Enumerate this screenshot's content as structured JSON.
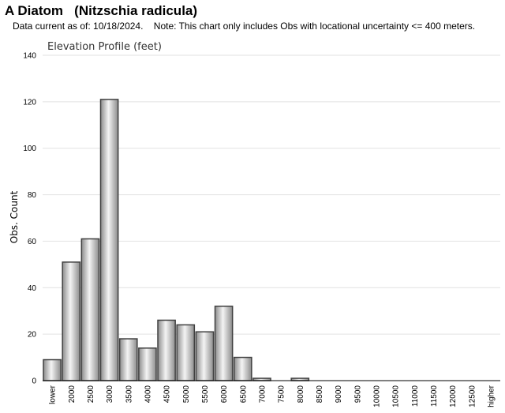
{
  "header": {
    "title": "A Diatom   (Nitzschia radicula)",
    "note": "Data current as of: 10/18/2024.    Note: This chart only includes Obs with locational uncertainty <= 400 meters."
  },
  "chart_data": {
    "type": "bar",
    "title": "Elevation Profile (feet)",
    "xlabel": "",
    "ylabel": "Obs. Count",
    "ylim": [
      0,
      140
    ],
    "yticks": [
      0,
      20,
      40,
      60,
      80,
      100,
      120,
      140
    ],
    "grid": true,
    "categories": [
      "lower",
      "2000",
      "2500",
      "3000",
      "3500",
      "4000",
      "4500",
      "5000",
      "5500",
      "6000",
      "6500",
      "7000",
      "7500",
      "8000",
      "8500",
      "9000",
      "9500",
      "10000",
      "10500",
      "11000",
      "11500",
      "12000",
      "12500",
      "higher"
    ],
    "values": [
      9,
      51,
      61,
      121,
      18,
      14,
      26,
      24,
      21,
      32,
      10,
      1,
      0,
      1,
      0,
      0,
      0,
      0,
      0,
      0,
      0,
      0,
      0,
      0
    ],
    "colors": {
      "bar_edge": "#404040",
      "bar_dark": "#8c8c8c",
      "bar_light": "#f4f4f4",
      "grid": "#e2e2e2",
      "axis": "#000000"
    }
  }
}
